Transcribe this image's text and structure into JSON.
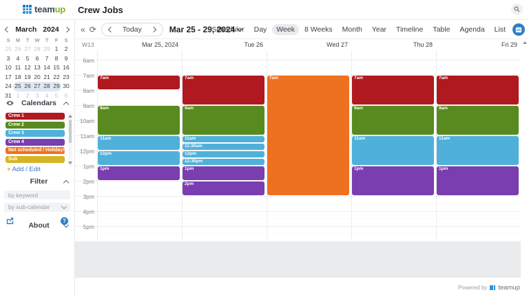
{
  "header": {
    "brand_team": "team",
    "brand_up": "up",
    "title": "Crew Jobs"
  },
  "toolbar": {
    "today_label": "Today",
    "date_range": "Mar 25 - 29, 2024",
    "views": [
      "Scheduler",
      "Day",
      "Week",
      "8 Weeks",
      "Month",
      "Year",
      "Timeline",
      "Table",
      "Agenda",
      "List"
    ],
    "active_view": "Week"
  },
  "mini_calendar": {
    "month": "March",
    "year": "2024",
    "dow": [
      "S",
      "M",
      "T",
      "W",
      "T",
      "F",
      "S"
    ],
    "weeks": [
      [
        {
          "d": "25",
          "o": 1
        },
        {
          "d": "26",
          "o": 1
        },
        {
          "d": "27",
          "o": 1
        },
        {
          "d": "28",
          "o": 1
        },
        {
          "d": "29",
          "o": 1
        },
        {
          "d": "1"
        },
        {
          "d": "2"
        }
      ],
      [
        {
          "d": "3"
        },
        {
          "d": "4"
        },
        {
          "d": "5"
        },
        {
          "d": "6"
        },
        {
          "d": "7"
        },
        {
          "d": "8"
        },
        {
          "d": "9"
        }
      ],
      [
        {
          "d": "10"
        },
        {
          "d": "11"
        },
        {
          "d": "12"
        },
        {
          "d": "13"
        },
        {
          "d": "14"
        },
        {
          "d": "15"
        },
        {
          "d": "16"
        }
      ],
      [
        {
          "d": "17"
        },
        {
          "d": "18"
        },
        {
          "d": "19"
        },
        {
          "d": "20"
        },
        {
          "d": "21"
        },
        {
          "d": "22"
        },
        {
          "d": "23"
        }
      ],
      [
        {
          "d": "24"
        },
        {
          "d": "25",
          "s": 1
        },
        {
          "d": "26",
          "s": 1
        },
        {
          "d": "27",
          "s": 1
        },
        {
          "d": "28",
          "s": 1
        },
        {
          "d": "29",
          "s": 1
        },
        {
          "d": "30"
        }
      ],
      [
        {
          "d": "31"
        },
        {
          "d": "1",
          "o": 1
        },
        {
          "d": "2",
          "o": 1
        },
        {
          "d": "3",
          "o": 1
        },
        {
          "d": "4",
          "o": 1
        },
        {
          "d": "5",
          "o": 1
        },
        {
          "d": "6",
          "o": 1
        }
      ]
    ]
  },
  "sidebar": {
    "calendars": {
      "title": "Calendars",
      "items": [
        {
          "label": "Crew 1",
          "color": "#b0191f"
        },
        {
          "label": "Crew 2",
          "color": "#588a1f"
        },
        {
          "label": "Crew 3",
          "color": "#4fb1da"
        },
        {
          "label": "Crew 4",
          "color": "#7a3eb1"
        },
        {
          "label": "Not scheduled / Holidays",
          "color": "#ee7120"
        },
        {
          "label": "Sub",
          "color": "#d6b525"
        }
      ],
      "add_edit_plus": "+",
      "add_edit_label": "Add / Edit"
    },
    "filter": {
      "title": "Filter",
      "keyword_placeholder": "by keyword",
      "subcalendar_label": "by sub-calendar"
    },
    "about": {
      "title": "About"
    }
  },
  "grid": {
    "week_number": "W13",
    "hours": [
      "6am",
      "7am",
      "8am",
      "9am",
      "10am",
      "11am",
      "12pm",
      "1pm",
      "2pm",
      "3pm",
      "4pm",
      "5pm"
    ],
    "days": [
      {
        "label": "Mar 25, 2024",
        "events": [
          {
            "label": "7am",
            "calendar": "Crew 1",
            "start": 7,
            "end": 8
          },
          {
            "label": "9am",
            "calendar": "Crew 2",
            "start": 9,
            "end": 11
          },
          {
            "label": "11am",
            "calendar": "Crew 3",
            "start": 11,
            "end": 12
          },
          {
            "label": "12pm",
            "calendar": "Crew 3",
            "start": 12,
            "end": 13
          },
          {
            "label": "1pm",
            "calendar": "Crew 4",
            "start": 13,
            "end": 14
          }
        ]
      },
      {
        "label": "Tue 26",
        "events": [
          {
            "label": "7am",
            "calendar": "Crew 1",
            "start": 7,
            "end": 9
          },
          {
            "label": "9am",
            "calendar": "Crew 2",
            "start": 9,
            "end": 11
          },
          {
            "label": "11am",
            "calendar": "Crew 3",
            "start": 11,
            "end": 11.5
          },
          {
            "label": "11:30am",
            "calendar": "Crew 3",
            "start": 11.5,
            "end": 12
          },
          {
            "label": "12pm",
            "calendar": "Crew 3",
            "start": 12,
            "end": 12.5
          },
          {
            "label": "12:30pm",
            "calendar": "Crew 3",
            "start": 12.5,
            "end": 13
          },
          {
            "label": "1pm",
            "calendar": "Crew 4",
            "start": 13,
            "end": 14
          },
          {
            "label": "2pm",
            "calendar": "Crew 4",
            "start": 14,
            "end": 15
          }
        ]
      },
      {
        "label": "Wed 27",
        "events": [
          {
            "label": "7am",
            "calendar": "Not scheduled / Holidays",
            "start": 7,
            "end": 15
          }
        ]
      },
      {
        "label": "Thu 28",
        "events": [
          {
            "label": "7am",
            "calendar": "Crew 1",
            "start": 7,
            "end": 9
          },
          {
            "label": "9am",
            "calendar": "Crew 2",
            "start": 9,
            "end": 11
          },
          {
            "label": "11am",
            "calendar": "Crew 3",
            "start": 11,
            "end": 13
          },
          {
            "label": "1pm",
            "calendar": "Crew 4",
            "start": 13,
            "end": 15
          }
        ]
      },
      {
        "label": "Fri 29",
        "events": [
          {
            "label": "7am",
            "calendar": "Crew 1",
            "start": 7,
            "end": 9
          },
          {
            "label": "9am",
            "calendar": "Crew 2",
            "start": 9,
            "end": 11
          },
          {
            "label": "11am",
            "calendar": "Crew 3",
            "start": 11,
            "end": 13
          },
          {
            "label": "1pm",
            "calendar": "Crew 4",
            "start": 13,
            "end": 15
          }
        ]
      }
    ]
  },
  "colors": {
    "Crew 1": "#b0191f",
    "Crew 2": "#588a1f",
    "Crew 3": "#4fb1da",
    "Crew 4": "#7a3eb1",
    "Not scheduled / Holidays": "#ee7120",
    "Sub": "#d6b525"
  },
  "footer": {
    "powered_by": "Powered by",
    "brand": "teamup"
  }
}
